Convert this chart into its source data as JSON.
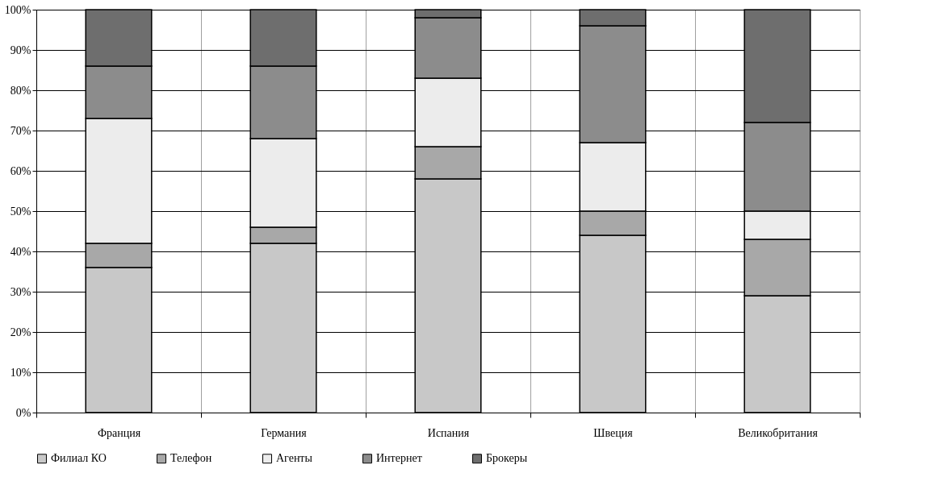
{
  "chart_data": {
    "type": "bar",
    "stacked": true,
    "categories": [
      "Франция",
      "Германия",
      "Испания",
      "Швеция",
      "Великобритания"
    ],
    "series": [
      {
        "name": "Филиал КО",
        "color": "#c8c8c8",
        "values": [
          36,
          42,
          58,
          44,
          29
        ]
      },
      {
        "name": "Телефон",
        "color": "#a8a8a8",
        "values": [
          6,
          4,
          8,
          6,
          14
        ]
      },
      {
        "name": "Агенты",
        "color": "#ececec",
        "values": [
          31,
          22,
          17,
          17,
          7
        ]
      },
      {
        "name": "Интернет",
        "color": "#8c8c8c",
        "values": [
          13,
          18,
          15,
          29,
          22
        ]
      },
      {
        "name": "Брокеры",
        "color": "#6e6e6e",
        "values": [
          14,
          14,
          2,
          4,
          28
        ]
      }
    ],
    "ylim": [
      0,
      100
    ],
    "yticks": [
      {
        "value": 0,
        "label": "0%"
      },
      {
        "value": 10,
        "label": "10%"
      },
      {
        "value": 20,
        "label": "20%"
      },
      {
        "value": 30,
        "label": "30%"
      },
      {
        "value": 40,
        "label": "40%"
      },
      {
        "value": 50,
        "label": "50%"
      },
      {
        "value": 60,
        "label": "60%"
      },
      {
        "value": 70,
        "label": "70%"
      },
      {
        "value": 80,
        "label": "80%"
      },
      {
        "value": 90,
        "label": "90%"
      },
      {
        "value": 100,
        "label": "100%"
      }
    ],
    "grid": true,
    "legend": "bottom"
  }
}
